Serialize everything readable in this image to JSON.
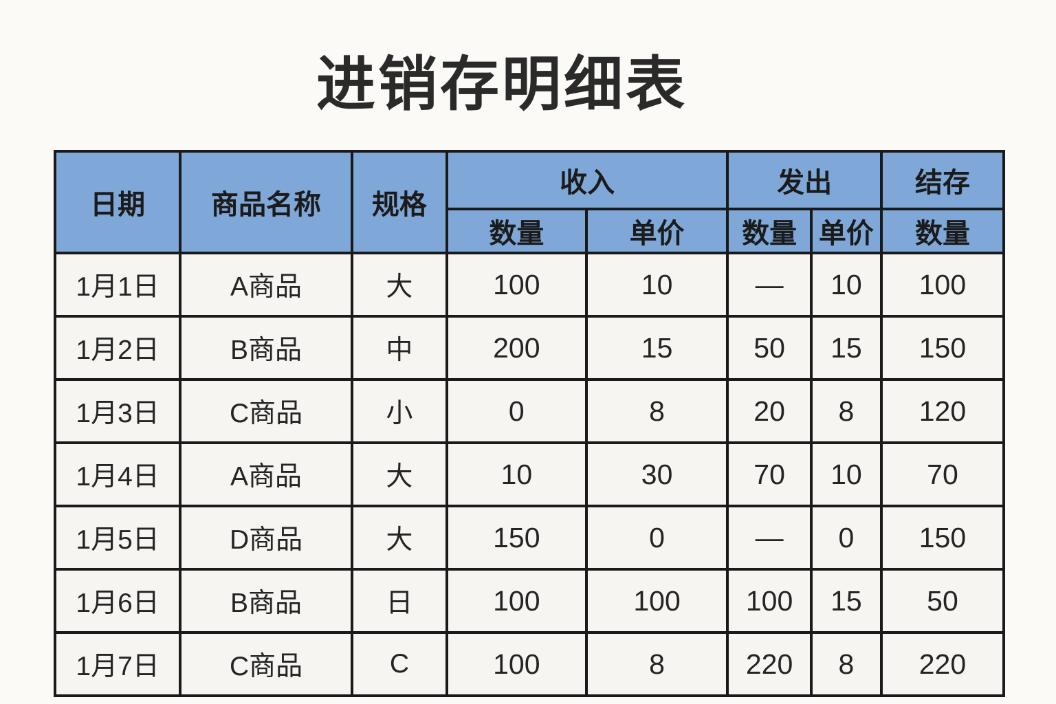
{
  "page": {
    "title": "进销存明细表"
  },
  "table": {
    "header": {
      "date": "日期",
      "product": "商品名称",
      "spec": "规格",
      "in_group": "收入",
      "in_qty": "数量",
      "in_price": "单价",
      "out_group": "发出",
      "out_qty": "数量",
      "out_price": "单价",
      "balance_group": "结存",
      "balance_qty": "数量"
    },
    "col_keys": [
      "date",
      "product",
      "spec",
      "in-qty",
      "in-price",
      "out-qty",
      "out-price",
      "balance-qty"
    ],
    "rows": [
      [
        "1月1日",
        "A商品",
        "大",
        "100",
        "10",
        "—",
        "10",
        "100"
      ],
      [
        "1月2日",
        "B商品",
        "中",
        "200",
        "15",
        "50",
        "15",
        "150"
      ],
      [
        "1月3日",
        "C商品",
        "小",
        "0",
        "8",
        "20",
        "8",
        "120"
      ],
      [
        "1月4日",
        "A商品",
        "大",
        "10",
        "30",
        "70",
        "10",
        "70"
      ],
      [
        "1月5日",
        "D商品",
        "大",
        "150",
        "0",
        "—",
        "0",
        "150"
      ],
      [
        "1月6日",
        "B商品",
        "日",
        "100",
        "100",
        "100",
        "15",
        "50"
      ],
      [
        "1月7日",
        "C商品",
        "C",
        "100",
        "8",
        "220",
        "8",
        "220"
      ]
    ],
    "colors": {
      "header_bg": "#7fa8d8",
      "cell_bg": "#f6f5f1",
      "border": "#1a1a1a",
      "page_bg": "#fbfaf6",
      "text": "#242424"
    }
  }
}
